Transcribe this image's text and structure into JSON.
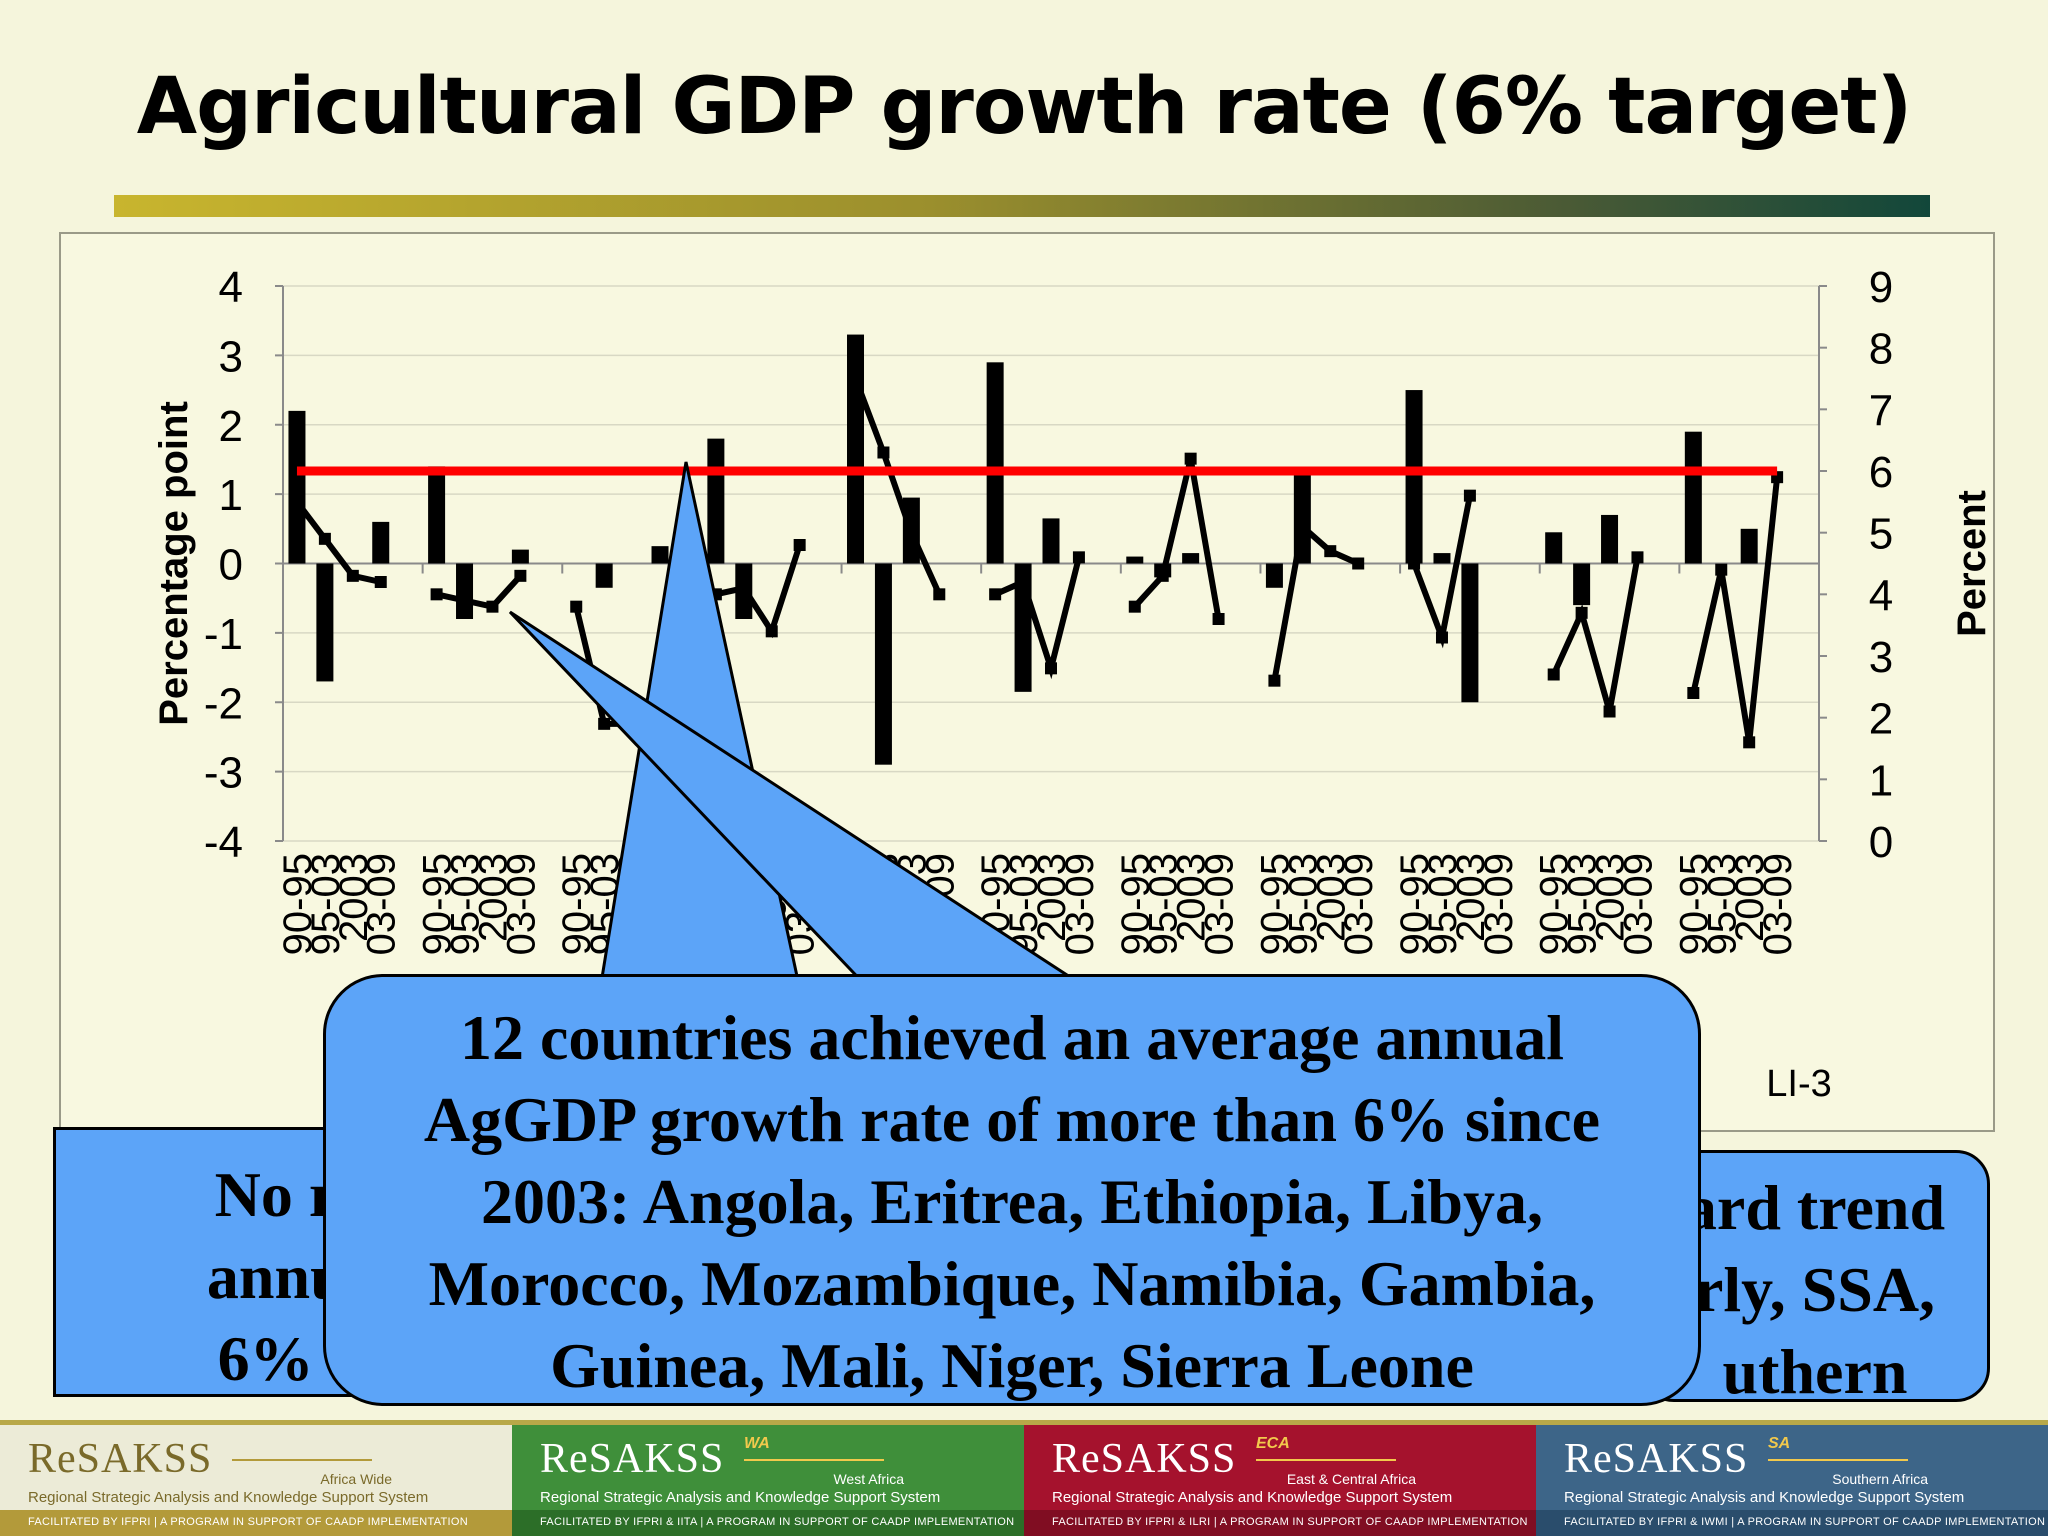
{
  "slide": {
    "title": "Agricultural GDP growth rate (6% target)",
    "slide_code": "LI-3"
  },
  "colors": {
    "background": "#f5f5dc",
    "bars": "#000000",
    "line": "#000000",
    "target_line": "#ff0000",
    "callout_fill": "#5ca4f8"
  },
  "chart_data": {
    "type": "bar",
    "combo": "bar (left axis) + line (right axis)",
    "ylabel": "Percentage point",
    "y2label": "Percent",
    "ylim": [
      -4,
      4
    ],
    "y_ticks": [
      "4",
      "3",
      "2",
      "1",
      "0",
      "-1",
      "-2",
      "-3",
      "-4"
    ],
    "y2lim": [
      0,
      9
    ],
    "y2_ticks": [
      "9",
      "8",
      "7",
      "6",
      "5",
      "4",
      "3",
      "2",
      "1",
      "0"
    ],
    "grid": true,
    "target_value_right_axis": 6,
    "groups": 11,
    "categories": [
      "90-95",
      "95-03",
      "2003",
      "03-09",
      "90-95",
      "95-03",
      "2003",
      "03-09",
      "90-95",
      "95-03",
      "2003",
      "03-09",
      "90-95",
      "95-03",
      "2003",
      "03-09",
      "90-95",
      "95-03",
      "2003",
      "03-09",
      "90-95",
      "95-03",
      "2003",
      "03-09",
      "90-95",
      "95-03",
      "2003",
      "03-09",
      "90-95",
      "95-03",
      "2003",
      "03-09",
      "90-95",
      "95-03",
      "2003",
      "03-09",
      "90-95",
      "95-03",
      "2003",
      "03-09",
      "90-95",
      "95-03",
      "2003",
      "03-09"
    ],
    "bar_values": [
      2.2,
      -1.7,
      0,
      0.6,
      1.4,
      -0.8,
      0,
      0.2,
      0,
      -0.35,
      0,
      0.25,
      1.8,
      -0.8,
      0,
      0,
      3.3,
      -2.9,
      0.95,
      0,
      2.9,
      -1.85,
      0.65,
      0,
      0.1,
      -0.2,
      0.15,
      0,
      -0.35,
      1.35,
      0,
      0,
      2.5,
      0.15,
      -2.0,
      0,
      0.45,
      -0.6,
      0.7,
      0,
      1.9,
      0,
      0.5,
      0
    ],
    "line_values": [
      5.5,
      4.9,
      4.3,
      4.2,
      4.0,
      3.9,
      3.8,
      4.3,
      3.8,
      1.9,
      1.9,
      null,
      4.0,
      4.1,
      3.4,
      4.8,
      7.5,
      6.3,
      5.0,
      4.0,
      4.0,
      4.2,
      2.8,
      4.6,
      3.8,
      4.3,
      6.2,
      3.6,
      2.6,
      5.1,
      4.7,
      4.5,
      4.5,
      3.3,
      5.6,
      null,
      2.7,
      3.7,
      2.1,
      4.6,
      2.4,
      4.4,
      1.6,
      5.9
    ]
  },
  "callouts": {
    "left": {
      "lines": [
        "No regio",
        "annual A",
        "6% targ"
      ]
    },
    "main": {
      "lines": [
        "12 countries achieved an average annual",
        "AgGDP growth rate of more than 6% since",
        "2003: Angola, Eritrea, Ethiopia, Libya,",
        "Morocco,  Mozambique, Namibia, Gambia,",
        "Guinea, Mali, Niger, Sierra Leone"
      ]
    },
    "right": {
      "lines": [
        "ard trend",
        "rly, SSA,",
        "uthern"
      ]
    }
  },
  "footer": {
    "banners": [
      {
        "name": "ReSAKSS",
        "sup": "",
        "region": "Africa Wide",
        "subtitle": "Regional Strategic Analysis and Knowledge Support System",
        "foot": "FACILITATED BY IFPRI  |  A PROGRAM IN SUPPORT OF CAADP IMPLEMENTATION",
        "bg": "#ecebd7",
        "fg": "#7a6a2a",
        "footbg": "#b39a3a",
        "footfg": "#ffffff"
      },
      {
        "name": "ReSAKSS",
        "sup": "WA",
        "region": "West Africa",
        "subtitle": "Regional Strategic Analysis and Knowledge Support System",
        "foot": "FACILITATED BY IFPRI & IITA  |  A PROGRAM IN SUPPORT OF CAADP IMPLEMENTATION",
        "bg": "#3f8f3a",
        "fg": "#ffffff",
        "footbg": "#2c6e28",
        "footfg": "#ffffff"
      },
      {
        "name": "ReSAKSS",
        "sup": "ECA",
        "region": "East & Central Africa",
        "subtitle": "Regional Strategic Analysis and Knowledge Support System",
        "foot": "FACILITATED BY IFPRI & ILRI  |  A PROGRAM IN SUPPORT OF CAADP IMPLEMENTATION",
        "bg": "#a5122d",
        "fg": "#ffffff",
        "footbg": "#800d22",
        "footfg": "#ffffff"
      },
      {
        "name": "ReSAKSS",
        "sup": "SA",
        "region": "Southern Africa",
        "subtitle": "Regional Strategic Analysis and Knowledge Support System",
        "foot": "FACILITATED BY IFPRI & IWMI  |  A PROGRAM IN SUPPORT OF CAADP IMPLEMENTATION",
        "bg": "#3d6588",
        "fg": "#ffffff",
        "footbg": "#2a4d6c",
        "footfg": "#ffffff"
      }
    ]
  }
}
